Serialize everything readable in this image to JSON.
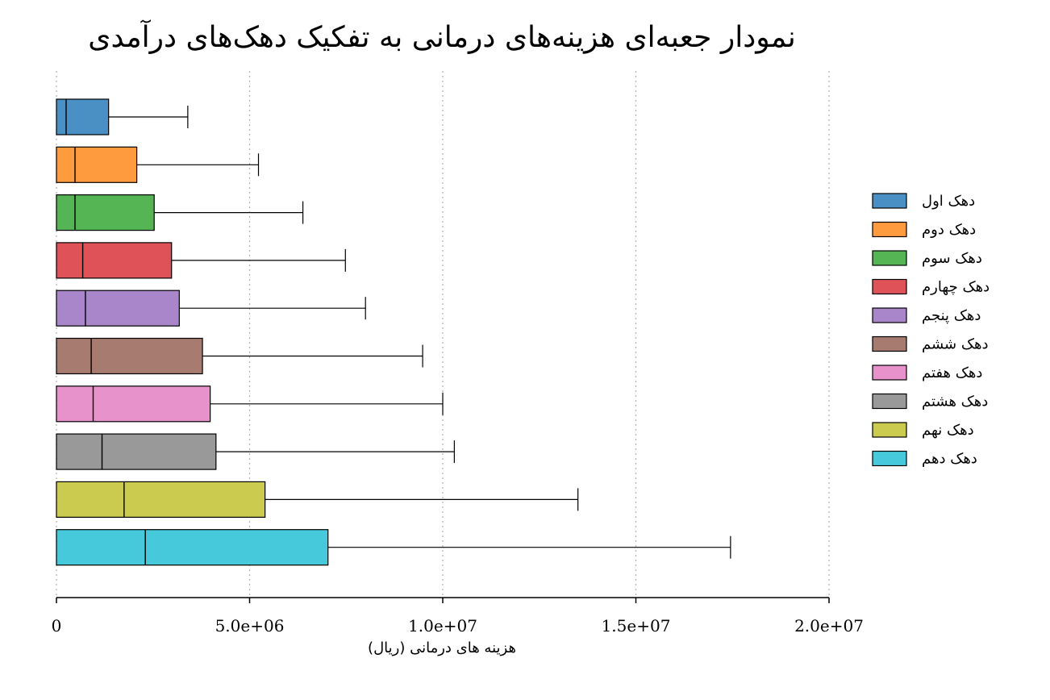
{
  "chart_data": {
    "type": "boxplot",
    "title": "نمودار جعبه‌ای هزینه‌های درمانی به تفکیک دهک‌های درآمدی",
    "xlabel": "هزینه های درمانی (ریال)",
    "ylabel": "",
    "xlim": [
      0,
      20000000
    ],
    "x_ticks": [
      0,
      5000000,
      10000000,
      15000000,
      20000000
    ],
    "x_tick_labels": [
      "0",
      "5.0e+06",
      "1.0e+07",
      "1.5e+07",
      "2.0e+07"
    ],
    "grid": "vertical dotted",
    "legend_position": "right",
    "series": [
      {
        "name": "دهک اول",
        "color": "#4a90c4",
        "q1": 0,
        "median": 250000,
        "q3": 1350000,
        "whisker_high": 3400000
      },
      {
        "name": "دهک دوم",
        "color": "#fd9b3e",
        "q1": 0,
        "median": 480000,
        "q3": 2080000,
        "whisker_high": 5230000
      },
      {
        "name": "دهک سوم",
        "color": "#55b454",
        "q1": 0,
        "median": 480000,
        "q3": 2530000,
        "whisker_high": 6380000
      },
      {
        "name": "دهک چهارم",
        "color": "#df5358",
        "q1": 0,
        "median": 680000,
        "q3": 2980000,
        "whisker_high": 7480000
      },
      {
        "name": "دهک پنجم",
        "color": "#a886c9",
        "q1": 0,
        "median": 750000,
        "q3": 3180000,
        "whisker_high": 8000000
      },
      {
        "name": "دهک ششم",
        "color": "#a77b70",
        "q1": 0,
        "median": 900000,
        "q3": 3780000,
        "whisker_high": 9480000
      },
      {
        "name": "دهک هفتم",
        "color": "#e892cc",
        "q1": 0,
        "median": 950000,
        "q3": 3980000,
        "whisker_high": 10000000
      },
      {
        "name": "دهک هشتم",
        "color": "#999999",
        "q1": 0,
        "median": 1180000,
        "q3": 4130000,
        "whisker_high": 10300000
      },
      {
        "name": "دهک نهم",
        "color": "#cbcb50",
        "q1": 0,
        "median": 1750000,
        "q3": 5400000,
        "whisker_high": 13500000
      },
      {
        "name": "دهک دهم",
        "color": "#46cadb",
        "q1": 0,
        "median": 2300000,
        "q3": 7030000,
        "whisker_high": 17450000
      }
    ]
  }
}
